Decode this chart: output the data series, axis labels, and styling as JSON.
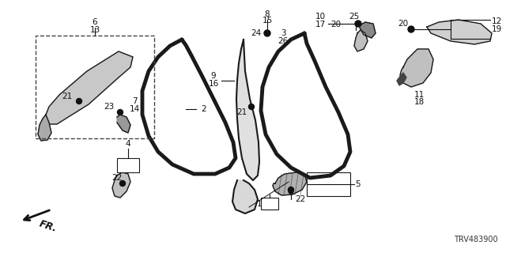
{
  "bg_color": "#ffffff",
  "diagram_id": "TRV483900",
  "fig_w": 6.4,
  "fig_h": 3.2,
  "dpi": 100
}
